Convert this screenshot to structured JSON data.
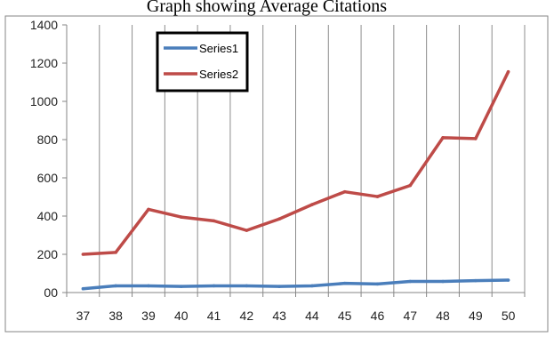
{
  "chart_data": {
    "type": "line",
    "title": "Graph showing Average Citations",
    "xlabel": "",
    "ylabel": "",
    "categories": [
      "37",
      "38",
      "39",
      "40",
      "41",
      "42",
      "43",
      "44",
      "45",
      "46",
      "47",
      "48",
      "49",
      "50"
    ],
    "ylim": [
      0,
      1400
    ],
    "yticks": [
      0,
      200,
      400,
      600,
      800,
      1000,
      1200,
      1400
    ],
    "ytick_labels": [
      "00",
      "200",
      "400",
      "600",
      "800",
      "1000",
      "1200",
      "1400"
    ],
    "grid": "vertical",
    "legend_position": "top-left",
    "series": [
      {
        "name": "Series1",
        "color": "#4a7ebb",
        "values": [
          20,
          35,
          35,
          32,
          35,
          35,
          32,
          35,
          48,
          45,
          58,
          58,
          62,
          65
        ]
      },
      {
        "name": "Series2",
        "color": "#be4b48",
        "values": [
          200,
          210,
          435,
          395,
          375,
          325,
          385,
          460,
          527,
          502,
          560,
          810,
          805,
          1155
        ]
      }
    ]
  }
}
